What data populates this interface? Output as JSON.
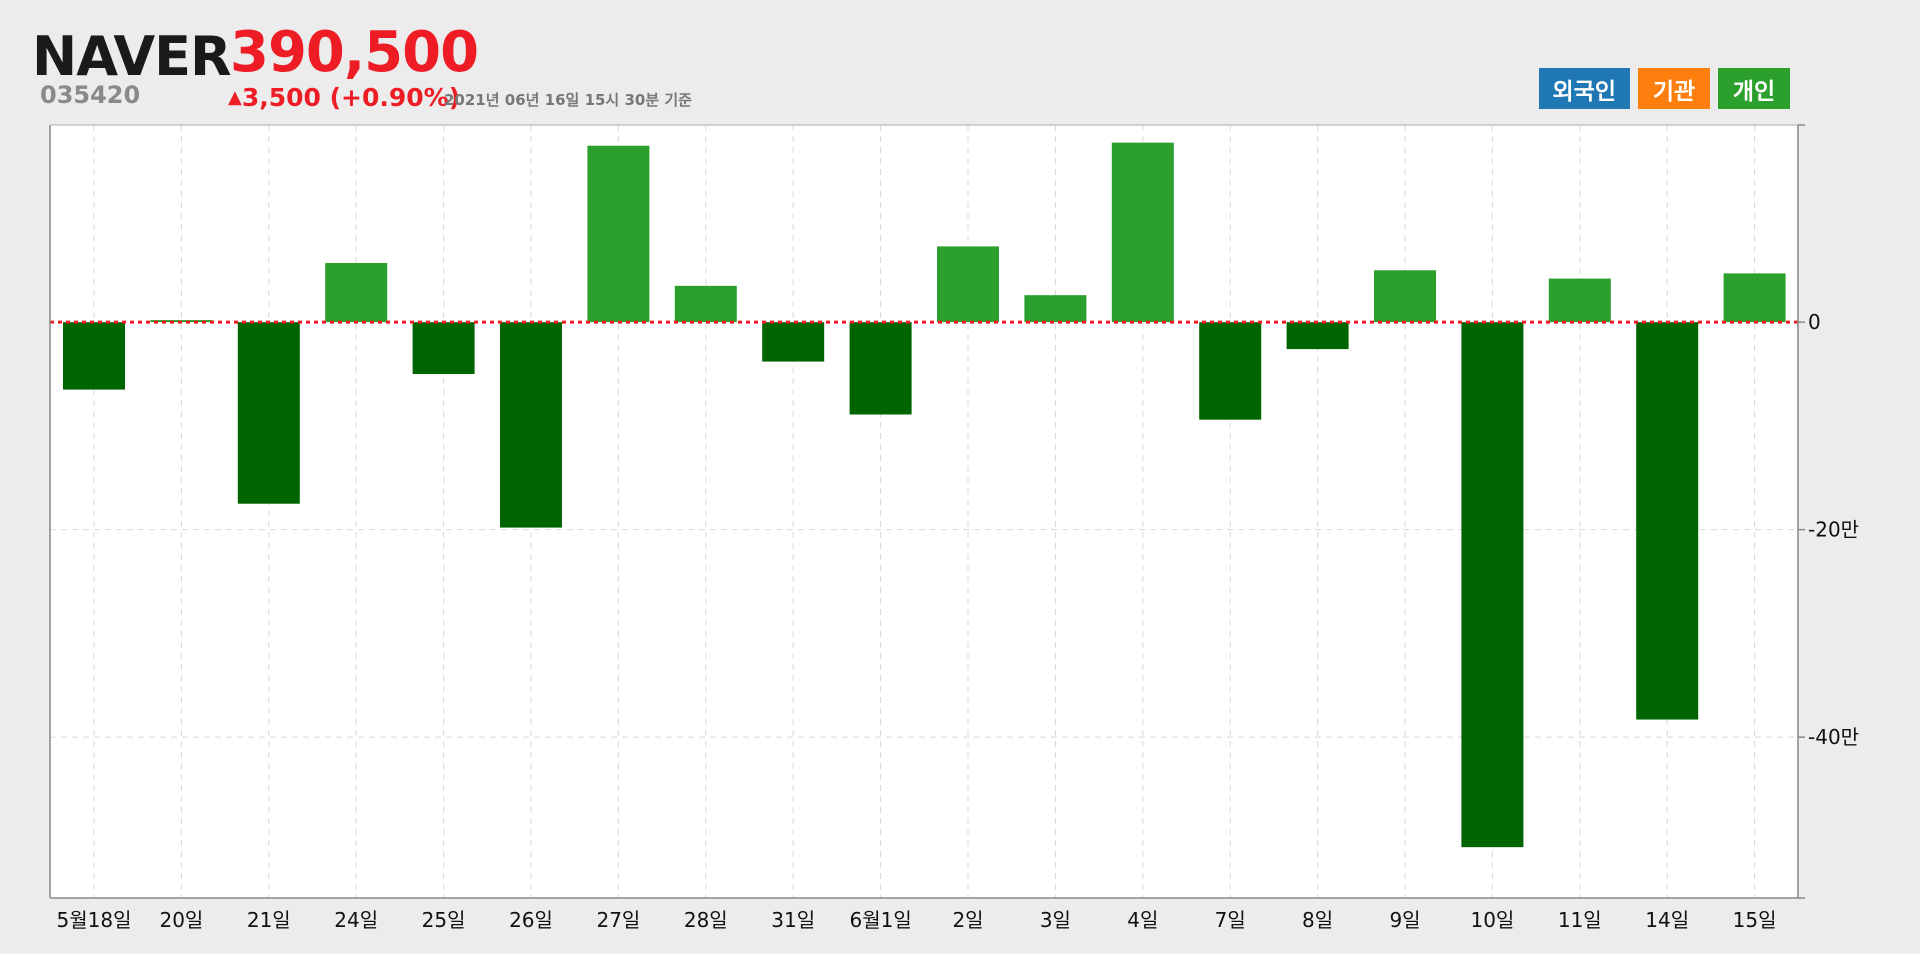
{
  "stock": {
    "name": "NAVER",
    "code": "035420",
    "price": "390,500",
    "change_arrow": "▲",
    "change": "3,500 (+0.90%)",
    "as_of": "2021년 06년 16일 15시 30분 기준"
  },
  "legend": [
    {
      "label": "외국인",
      "color": "#1f77b4"
    },
    {
      "label": "기관",
      "color": "#ff7f0e"
    },
    {
      "label": "개인",
      "color": "#2ca02c"
    }
  ],
  "chart_data": {
    "type": "bar",
    "series": [
      {
        "name": "개인",
        "values": [
          -65000,
          2000,
          -175000,
          57000,
          -50000,
          -198000,
          170000,
          35000,
          -38000,
          -89000,
          73000,
          26000,
          173000,
          -94000,
          -26000,
          50000,
          -506000,
          42000,
          -383000,
          47000
        ]
      }
    ],
    "categories": [
      "5월18일",
      "20일",
      "21일",
      "24일",
      "25일",
      "26일",
      "27일",
      "28일",
      "31일",
      "6월1일",
      "2일",
      "3일",
      "4일",
      "7일",
      "8일",
      "9일",
      "10일",
      "11일",
      "14일",
      "15일"
    ],
    "ylim": [
      -555000,
      190000
    ],
    "yticks": [
      {
        "value": 0,
        "label": "0"
      },
      {
        "value": -200000,
        "label": "-20만"
      },
      {
        "value": -400000,
        "label": "-40만"
      }
    ],
    "colors": {
      "positive": "#2ca02c",
      "negative": "#006400",
      "zero_line": "#ee1c25"
    },
    "grid": true
  }
}
